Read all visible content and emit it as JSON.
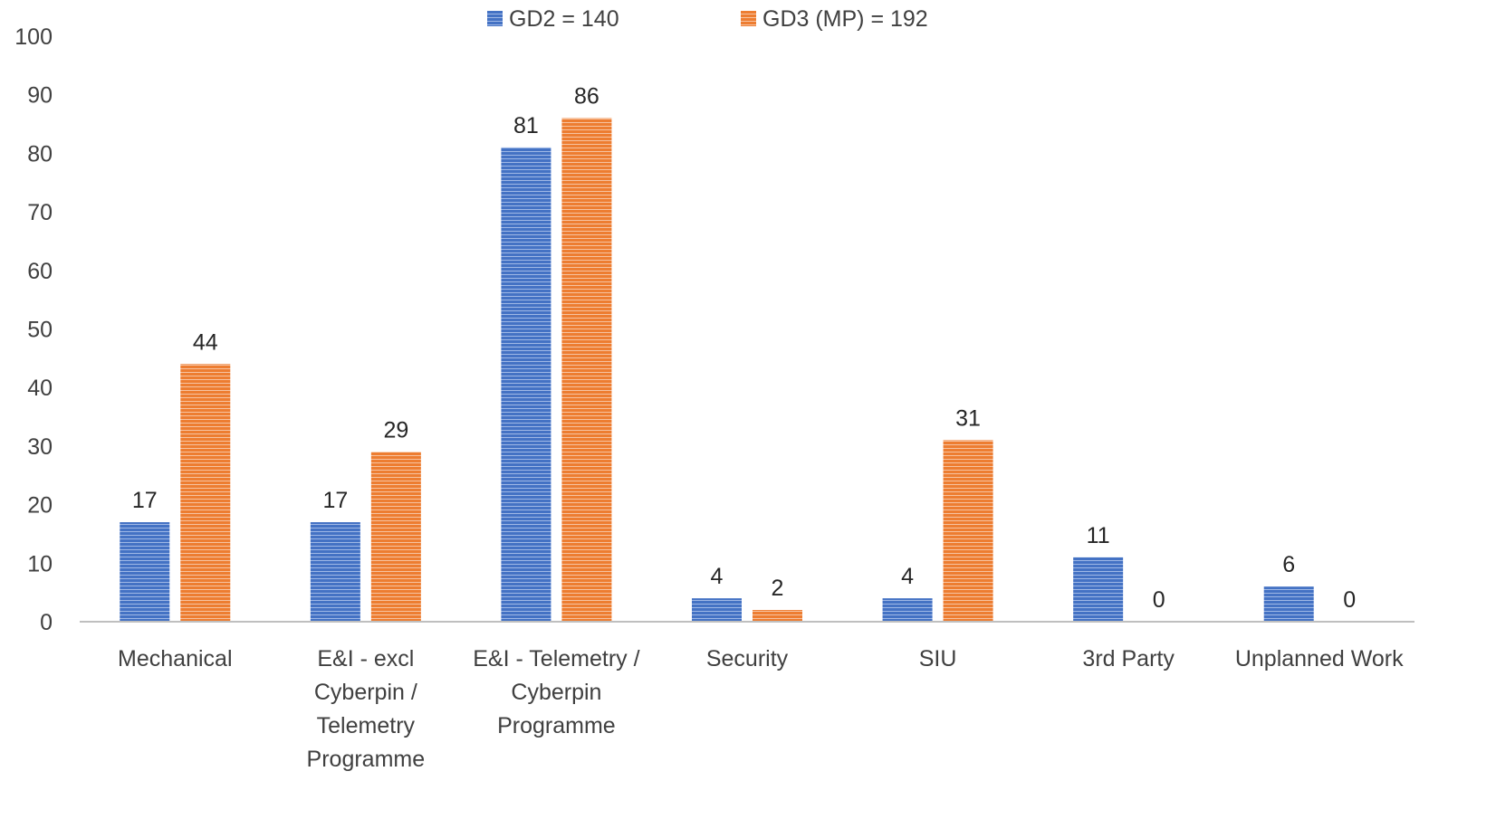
{
  "chart_data": {
    "type": "bar",
    "title": "",
    "xlabel": "",
    "ylabel": "",
    "ylim": [
      0,
      100
    ],
    "yticks": [
      0,
      10,
      20,
      30,
      40,
      50,
      60,
      70,
      80,
      90,
      100
    ],
    "grid": false,
    "legend_position": "top",
    "categories": [
      [
        "Mechanical"
      ],
      [
        "E&I - excl",
        "Cyberpin /",
        "Telemetry",
        "Programme"
      ],
      [
        "E&I - Telemetry /",
        "Cyberpin",
        "Programme"
      ],
      [
        "Security"
      ],
      [
        "SIU"
      ],
      [
        "3rd Party"
      ],
      [
        "Unplanned Work"
      ]
    ],
    "series": [
      {
        "name": "GD2 = 140",
        "color": "#4472C4",
        "values": [
          17,
          17,
          81,
          4,
          4,
          11,
          6
        ]
      },
      {
        "name": "GD3 (MP) = 192",
        "color": "#ED7D31",
        "values": [
          44,
          29,
          86,
          2,
          31,
          0,
          0
        ]
      }
    ]
  }
}
